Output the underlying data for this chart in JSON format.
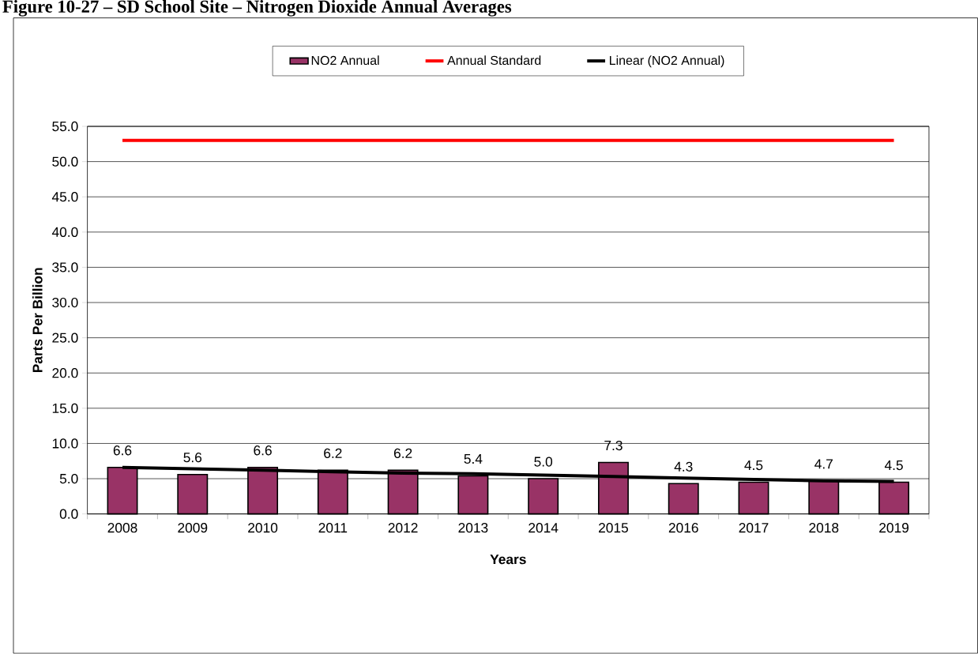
{
  "chart_data": {
    "type": "bar",
    "title": "Figure 10-27 – SD School Site – Nitrogen Dioxide Annual Averages",
    "xlabel": "Years",
    "ylabel": "Parts Per Billion",
    "categories": [
      "2008",
      "2009",
      "2010",
      "2011",
      "2012",
      "2013",
      "2014",
      "2015",
      "2016",
      "2017",
      "2018",
      "2019"
    ],
    "series": [
      {
        "name": "NO2 Annual",
        "color": "#993366",
        "values": [
          6.6,
          5.6,
          6.6,
          6.2,
          6.2,
          5.4,
          5.0,
          7.3,
          4.3,
          4.5,
          4.7,
          4.5
        ],
        "value_labels": [
          "6.6",
          "5.6",
          "6.6",
          "6.2",
          "6.2",
          "5.4",
          "5.0",
          "7.3",
          "4.3",
          "4.5",
          "4.7",
          "4.5"
        ]
      },
      {
        "name": "Annual Standard",
        "type": "line",
        "color": "#ff0000",
        "values": [
          53,
          53,
          53,
          53,
          53,
          53,
          53,
          53,
          53,
          53,
          53,
          53
        ]
      },
      {
        "name": "Linear (NO2 Annual)",
        "type": "line",
        "color": "#000000",
        "values": [
          6.6,
          6.4,
          6.2,
          6.0,
          5.8,
          5.7,
          5.5,
          5.3,
          5.1,
          4.9,
          4.7,
          4.6
        ]
      }
    ],
    "ylim": [
      0,
      55
    ],
    "yticks": [
      {
        "value": 0,
        "label": "0.0"
      },
      {
        "value": 5,
        "label": "5.0"
      },
      {
        "value": 10,
        "label": "10.0"
      },
      {
        "value": 15,
        "label": "15.0"
      },
      {
        "value": 20,
        "label": "20.0"
      },
      {
        "value": 25,
        "label": "25.0"
      },
      {
        "value": 30,
        "label": "30.0"
      },
      {
        "value": 35,
        "label": "35.0"
      },
      {
        "value": 40,
        "label": "40.0"
      },
      {
        "value": 45,
        "label": "45.0"
      },
      {
        "value": 50,
        "label": "50.0"
      },
      {
        "value": 55,
        "label": "55.0"
      }
    ],
    "grid": "y",
    "legend": "top",
    "marker": "none",
    "line_style": "solid"
  }
}
